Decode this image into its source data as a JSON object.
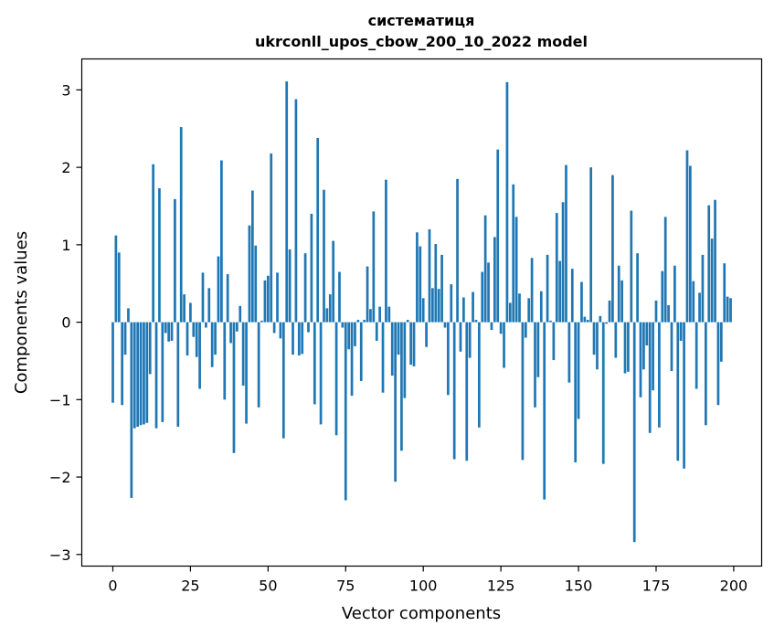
{
  "chart_data": {
    "type": "bar",
    "title": "систематиця",
    "subtitle": "ukrconll_upos_cbow_200_10_2022 model",
    "xlabel": "Vector components",
    "ylabel": "Components values",
    "xlim": [
      -10,
      209
    ],
    "ylim": [
      -3.15,
      3.4
    ],
    "xticks": [
      0,
      25,
      50,
      75,
      100,
      125,
      150,
      175,
      200
    ],
    "xtick_labels": [
      "0",
      "25",
      "50",
      "75",
      "100",
      "125",
      "150",
      "175",
      "200"
    ],
    "yticks": [
      -3,
      -2,
      -1,
      0,
      1,
      2,
      3
    ],
    "ytick_labels": [
      "−3",
      "−2",
      "−1",
      "0",
      "1",
      "2",
      "3"
    ],
    "grid": false,
    "legend": "none",
    "bar_color": "#1f77b4",
    "values": [
      -1.04,
      1.12,
      0.9,
      -1.07,
      -0.42,
      0.18,
      -2.27,
      -1.37,
      -1.35,
      -1.33,
      -1.32,
      -1.3,
      -0.67,
      2.04,
      -1.37,
      1.73,
      -1.29,
      -0.14,
      -0.25,
      -0.24,
      1.59,
      -1.35,
      2.52,
      0.36,
      -0.43,
      0.25,
      -0.19,
      -0.45,
      -0.86,
      0.64,
      -0.07,
      0.44,
      -0.58,
      -0.42,
      0.85,
      2.09,
      -1.0,
      0.62,
      -0.27,
      -1.69,
      -0.12,
      0.21,
      -0.82,
      -1.31,
      1.25,
      1.7,
      0.99,
      -1.1,
      0.02,
      0.54,
      0.6,
      2.18,
      -0.14,
      0.64,
      -0.21,
      -1.5,
      3.11,
      0.94,
      -0.42,
      2.88,
      -0.43,
      -0.41,
      0.89,
      -0.13,
      1.4,
      -1.06,
      2.38,
      -1.32,
      1.71,
      0.18,
      0.36,
      1.05,
      -1.46,
      0.65,
      -0.07,
      -2.3,
      -0.35,
      -0.95,
      -0.31,
      0.03,
      -0.76,
      0.03,
      0.72,
      0.17,
      1.43,
      -0.24,
      0.2,
      -0.91,
      1.84,
      0.2,
      -0.69,
      -2.06,
      -0.42,
      -1.66,
      -0.98,
      0.03,
      -0.55,
      -0.57,
      1.16,
      0.98,
      0.31,
      -0.32,
      1.2,
      0.44,
      1.01,
      0.43,
      0.87,
      -0.07,
      -0.94,
      0.49,
      -1.77,
      1.85,
      -0.38,
      0.32,
      -1.79,
      -0.46,
      0.39,
      0.03,
      -1.36,
      0.65,
      1.38,
      0.77,
      -0.1,
      1.1,
      2.23,
      -0.15,
      -0.59,
      3.1,
      0.25,
      1.78,
      1.36,
      0.37,
      -1.78,
      -0.2,
      0.31,
      0.83,
      -1.1,
      -0.71,
      0.4,
      -2.29,
      0.87,
      0.02,
      -0.49,
      1.41,
      0.79,
      1.55,
      2.03,
      -0.78,
      0.69,
      -1.81,
      -1.25,
      0.52,
      0.07,
      0.03,
      2.0,
      -0.42,
      -0.61,
      0.08,
      -1.83,
      -0.02,
      0.28,
      1.9,
      -0.46,
      0.73,
      0.54,
      -0.66,
      -0.64,
      1.44,
      -2.84,
      0.89,
      -0.97,
      -0.61,
      -0.3,
      -1.43,
      -0.88,
      0.28,
      -1.36,
      0.66,
      1.36,
      0.22,
      -0.63,
      0.73,
      -1.79,
      -0.24,
      -1.89,
      2.22,
      2.02,
      0.53,
      -0.86,
      0.38,
      0.87,
      -1.33,
      1.51,
      1.08,
      1.58,
      -1.07,
      -0.51,
      0.76,
      0.33,
      0.31
    ]
  }
}
